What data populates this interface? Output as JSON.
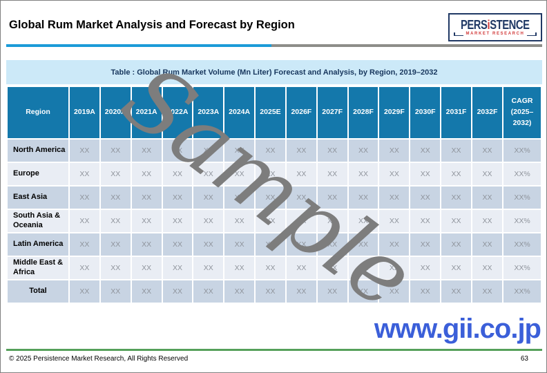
{
  "page": {
    "title": "Global Rum Market Analysis and Forecast by Region",
    "watermark": "Sample",
    "website": "www.gii.co.jp",
    "copyright": "© 2025 Persistence Market Research, All Rights Reserved",
    "page_number": "63"
  },
  "logo": {
    "brand_pre": "PERS",
    "brand_i": "i",
    "brand_post": "STENCE",
    "tagline": "MARKET RESEARCH"
  },
  "table": {
    "caption": "Table : Global Rum Market Volume (Mn Liter) Forecast and Analysis, by Region, 2019–2032",
    "columns": [
      "Region",
      "2019A",
      "2020A",
      "2021A",
      "2022A",
      "2023A",
      "2024A",
      "2025E",
      "2026F",
      "2027F",
      "2028F",
      "2029F",
      "2030F",
      "2031F",
      "2032F",
      "CAGR (2025–2032)"
    ],
    "rows": [
      {
        "region": "North America",
        "values": [
          "XX",
          "XX",
          "XX",
          "XX",
          "XX",
          "XX",
          "XX",
          "XX",
          "XX",
          "XX",
          "XX",
          "XX",
          "XX",
          "XX",
          "XX%"
        ]
      },
      {
        "region": "Europe",
        "values": [
          "XX",
          "XX",
          "XX",
          "XX",
          "XX",
          "XX",
          "XX",
          "XX",
          "XX",
          "XX",
          "XX",
          "XX",
          "XX",
          "XX",
          "XX%"
        ]
      },
      {
        "region": "East Asia",
        "values": [
          "XX",
          "XX",
          "XX",
          "XX",
          "XX",
          "XX",
          "XX",
          "XX",
          "XX",
          "XX",
          "XX",
          "XX",
          "XX",
          "XX",
          "XX%"
        ]
      },
      {
        "region": "South Asia & Oceania",
        "values": [
          "XX",
          "XX",
          "XX",
          "XX",
          "XX",
          "XX",
          "XX",
          "XX",
          "XX",
          "XX",
          "XX",
          "XX",
          "XX",
          "XX",
          "XX%"
        ]
      },
      {
        "region": "Latin America",
        "values": [
          "XX",
          "XX",
          "XX",
          "XX",
          "XX",
          "XX",
          "XX",
          "XX",
          "XX",
          "XX",
          "XX",
          "XX",
          "XX",
          "XX",
          "XX%"
        ]
      },
      {
        "region": "Middle East & Africa",
        "values": [
          "XX",
          "XX",
          "XX",
          "XX",
          "XX",
          "XX",
          "XX",
          "XX",
          "XX",
          "XX",
          "XX",
          "XX",
          "XX",
          "XX",
          "XX%"
        ]
      },
      {
        "region": "Total",
        "values": [
          "XX",
          "XX",
          "XX",
          "XX",
          "XX",
          "XX",
          "XX",
          "XX",
          "XX",
          "XX",
          "XX",
          "XX",
          "XX",
          "XX",
          "XX%"
        ]
      }
    ]
  },
  "colors": {
    "header_blue": "#1478ab",
    "caption_bg": "#cce9f8",
    "row_dark": "#c8d4e3",
    "row_light": "#e9edf4",
    "underline_blue": "#1b9bd8",
    "underline_gray": "#8d8d89",
    "footer_green": "#55a05a",
    "link_blue": "#3b5fd9",
    "logo_navy": "#1f3864",
    "logo_red": "#d23b3b",
    "watermark_gray": "#7d7d7d"
  }
}
